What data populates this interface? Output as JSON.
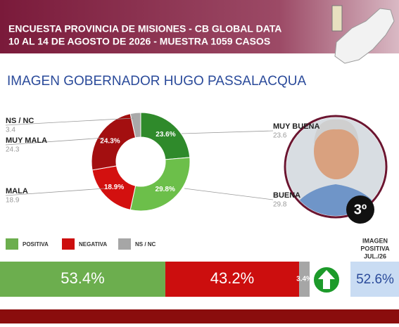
{
  "header": {
    "line1": "ENCUESTA PROVINCIA DE MISIONES - CB GLOBAL DATA",
    "line2": "10 AL 14 DE AGOSTO DE 2026 - MUESTRA 1059 CASOS"
  },
  "chart_data": [
    {
      "type": "donut",
      "title": "IMAGEN GOBERNADOR  HUGO PASSALACQUA",
      "categories": [
        "MUY BUENA",
        "BUENA",
        "MALA",
        "MUY MALA",
        "NS / NC"
      ],
      "values": [
        23.6,
        29.8,
        18.9,
        24.3,
        3.4
      ],
      "value_labels": [
        "23.6%",
        "29.8%",
        "18.9%",
        "24.3%",
        "3.4%"
      ],
      "colors": [
        "#2f8a2b",
        "#6cbf4a",
        "#d3100f",
        "#a30f10",
        "#a9a9a9"
      ]
    },
    {
      "type": "stacked-bar",
      "xlim": [
        0,
        100
      ],
      "series": [
        {
          "name": "POSITIVA",
          "color": "#6cae4e",
          "values": [
            53.4
          ],
          "value_labels": [
            "53.4%"
          ]
        },
        {
          "name": "NEGATIVA",
          "color": "#cc0e0e",
          "values": [
            43.2
          ],
          "value_labels": [
            "43.2%"
          ]
        },
        {
          "name": "NS / NC",
          "color": "#a6a6a6",
          "values": [
            3.4
          ],
          "value_labels": [
            "3.4%"
          ]
        }
      ]
    }
  ],
  "badge": "3º",
  "previous": {
    "label": [
      "IMAGEN",
      "POSITIVA",
      "JUL./26"
    ],
    "value_label": "52.6%"
  }
}
